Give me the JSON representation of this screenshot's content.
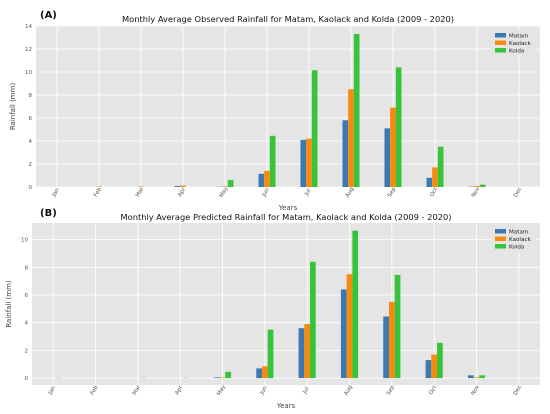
{
  "chart_data": [
    {
      "type": "bar",
      "panel_label": "(A)",
      "title": "Monthly Average Observed Rainfall for Matam, Kaolack and Kolda (2009 - 2020)",
      "xlabel": "Years",
      "ylabel": "Rainfall (mm)",
      "ylim": [
        0,
        14
      ],
      "yticks": [
        "0",
        "2",
        "4",
        "6",
        "8",
        "10",
        "12",
        "14"
      ],
      "grid": true,
      "legend_position": "top-right",
      "categories": [
        "Jan",
        "Feb",
        "Mar",
        "Apr",
        "May",
        "Jun",
        "Jul",
        "Aug",
        "Sep",
        "Oct",
        "Nov",
        "Dec"
      ],
      "series": [
        {
          "name": "Matam",
          "color": "#3b78b4",
          "values": [
            0,
            0,
            0,
            0.08,
            0.02,
            1.15,
            4.1,
            5.8,
            5.1,
            0.8,
            0.03,
            0
          ]
        },
        {
          "name": "Kaolack",
          "color": "#f68b0f",
          "values": [
            0,
            0.04,
            0.04,
            0.12,
            0.05,
            1.4,
            4.2,
            8.5,
            6.9,
            1.7,
            0.08,
            0
          ]
        },
        {
          "name": "Kolda",
          "color": "#38c43a",
          "values": [
            0,
            0,
            0,
            0,
            0.6,
            4.45,
            10.15,
            13.3,
            10.4,
            3.5,
            0.2,
            0
          ]
        }
      ]
    },
    {
      "type": "bar",
      "panel_label": "(B)",
      "title": "Monthly Average Predicted Rainfall for Matam, Kaolack and Kolda (2009 - 2020)",
      "xlabel": "Years",
      "ylabel": "Rainfall (mm)",
      "ylim": [
        -0.5,
        11.2
      ],
      "yticks": [
        "0",
        "2",
        "4",
        "6",
        "8",
        "10"
      ],
      "grid": true,
      "legend_position": "top-right",
      "categories": [
        "Jan",
        "Feb",
        "Mar",
        "Apr",
        "May",
        "Jun",
        "Jul",
        "Aug",
        "Sep",
        "Oct",
        "Nov",
        "Dec"
      ],
      "series": [
        {
          "name": "Matam",
          "color": "#3b78b4",
          "values": [
            0,
            0,
            0,
            0,
            0.05,
            0.7,
            3.6,
            6.4,
            4.45,
            1.3,
            0.2,
            0
          ]
        },
        {
          "name": "Kaolack",
          "color": "#f68b0f",
          "values": [
            0,
            0,
            0,
            0,
            0.04,
            0.85,
            3.9,
            7.5,
            5.5,
            1.7,
            0.05,
            0
          ]
        },
        {
          "name": "Kolda",
          "color": "#38c43a",
          "values": [
            0.02,
            0,
            0.02,
            0.02,
            0.45,
            3.5,
            8.4,
            10.65,
            7.45,
            2.55,
            0.2,
            0
          ]
        }
      ]
    }
  ]
}
